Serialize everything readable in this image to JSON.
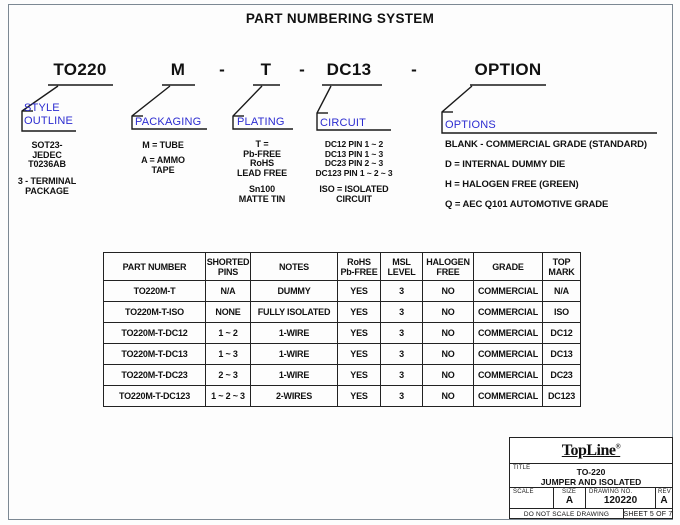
{
  "doc_title": "PART NUMBERING SYSTEM",
  "colors": {
    "label_blue": "#2b2bd0",
    "line_black": "#1a1a1a",
    "border_gray": "#7c8893"
  },
  "part_number": {
    "separator": "-",
    "segments": [
      {
        "code": "TO220",
        "label": "STYLE\nOUTLINE",
        "desc1": "SOT23-\nJEDEC\nT0236AB",
        "desc2": "3 - TERMINAL\nPACKAGE"
      },
      {
        "code": "M",
        "label": "PACKAGING",
        "desc1": "M = TUBE",
        "desc2": "A = AMMO\nTAPE"
      },
      {
        "code": "T",
        "label": "PLATING",
        "desc1": "T =\nPb-FREE\nRoHS\nLEAD FREE",
        "desc2": "Sn100\nMATTE TIN"
      },
      {
        "code": "DC13",
        "label": "CIRCUIT",
        "desc1": "DC12 PIN 1 ~ 2\nDC13 PIN 1 ~ 3\nDC23 PIN 2 ~ 3\nDC123 PIN 1 ~ 2 ~ 3",
        "desc2": "ISO = ISOLATED\nCIRCUIT"
      },
      {
        "code": "OPTION",
        "label": "OPTIONS",
        "options": [
          "BLANK - COMMERCIAL GRADE (STANDARD)",
          "D = INTERNAL DUMMY DIE",
          "H = HALOGEN FREE (GREEN)",
          "Q = AEC Q101 AUTOMOTIVE GRADE"
        ]
      }
    ]
  },
  "table": {
    "columns": [
      "PART NUMBER",
      "SHORTED\nPINS",
      "NOTES",
      "RoHS\nPb-FREE",
      "MSL\nLEVEL",
      "HALOGEN\nFREE",
      "GRADE",
      "TOP\nMARK"
    ],
    "rows": [
      [
        "TO220M-T",
        "N/A",
        "DUMMY",
        "YES",
        "3",
        "NO",
        "COMMERCIAL",
        "N/A"
      ],
      [
        "TO220M-T-ISO",
        "NONE",
        "FULLY ISOLATED",
        "YES",
        "3",
        "NO",
        "COMMERCIAL",
        "ISO"
      ],
      [
        "TO220M-T-DC12",
        "1 ~ 2",
        "1-WIRE",
        "YES",
        "3",
        "NO",
        "COMMERCIAL",
        "DC12"
      ],
      [
        "TO220M-T-DC13",
        "1 ~ 3",
        "1-WIRE",
        "YES",
        "3",
        "NO",
        "COMMERCIAL",
        "DC13"
      ],
      [
        "TO220M-T-DC23",
        "2 ~ 3",
        "1-WIRE",
        "YES",
        "3",
        "NO",
        "COMMERCIAL",
        "DC23"
      ],
      [
        "TO220M-T-DC123",
        "1 ~ 2 ~ 3",
        "2-WIRES",
        "YES",
        "3",
        "NO",
        "COMMERCIAL",
        "DC123"
      ]
    ]
  },
  "title_block": {
    "logo_text": "TopLine",
    "logo_reg": "®",
    "title_label": "TITLE",
    "title_value": "TO-220\nJUMPER AND ISOLATED",
    "scale_label": "SCALE",
    "scale_value": "",
    "size_label": "SIZE",
    "size_value": "A",
    "drawing_no_label": "DRAWING NO.",
    "drawing_no_value": "120220",
    "rev_label": "REV",
    "rev_value": "A",
    "do_not_scale_text": "DO NOT SCALE DRAWING",
    "sheet_text": "SHEET 5 OF 7"
  }
}
